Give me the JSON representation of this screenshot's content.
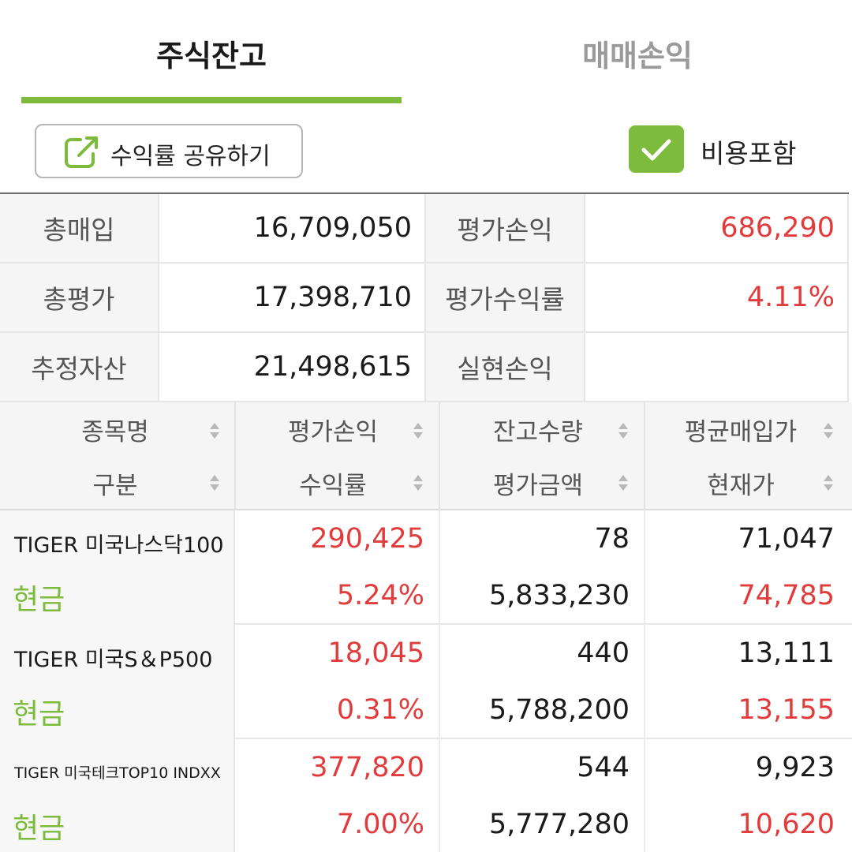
{
  "tabs": [
    {
      "label": "주식잔고",
      "active": true
    },
    {
      "label": "매매손익",
      "active": false
    }
  ],
  "toolbar": {
    "share_label": "수익률 공유하기",
    "include_fee_label": "비용포함",
    "include_fee_checked": true
  },
  "summary": {
    "total_purchase_label": "총매입",
    "total_purchase": "16,709,050",
    "eval_pl_label": "평가손익",
    "eval_pl": "686,290",
    "total_eval_label": "총평가",
    "total_eval": "17,398,710",
    "eval_return_label": "평가수익률",
    "eval_return": "4.11%",
    "est_assets_label": "추정자산",
    "est_assets": "21,498,615",
    "realized_pl_label": "실현손익",
    "realized_pl": ""
  },
  "columns": {
    "row1": [
      "종목명",
      "평가손익",
      "잔고수량",
      "평균매입가"
    ],
    "row2": [
      "구분",
      "수익률",
      "평가금액",
      "현재가"
    ]
  },
  "holdings": [
    {
      "name": "TIGER 미국나스닥100",
      "type": "현금",
      "eval_pl": "290,425",
      "return": "5.24%",
      "qty": "78",
      "eval_amount": "5,833,230",
      "avg_price": "71,047",
      "current_price": "74,785"
    },
    {
      "name": "TIGER 미국S＆P500",
      "type": "현금",
      "eval_pl": "18,045",
      "return": "0.31%",
      "qty": "440",
      "eval_amount": "5,788,200",
      "avg_price": "13,111",
      "current_price": "13,155"
    },
    {
      "name": "TIGER 미국테크TOP10 INDXX",
      "type": "현금",
      "eval_pl": "377,820",
      "return": "7.00%",
      "qty": "544",
      "eval_amount": "5,777,280",
      "avg_price": "9,923",
      "current_price": "10,620"
    }
  ],
  "colors": {
    "accent_green": "#7dbb3c",
    "positive_red": "#e23b3b"
  },
  "icons": {
    "share": "external-link-icon",
    "checkbox": "check-icon",
    "sort": "sort-updown-icon"
  }
}
